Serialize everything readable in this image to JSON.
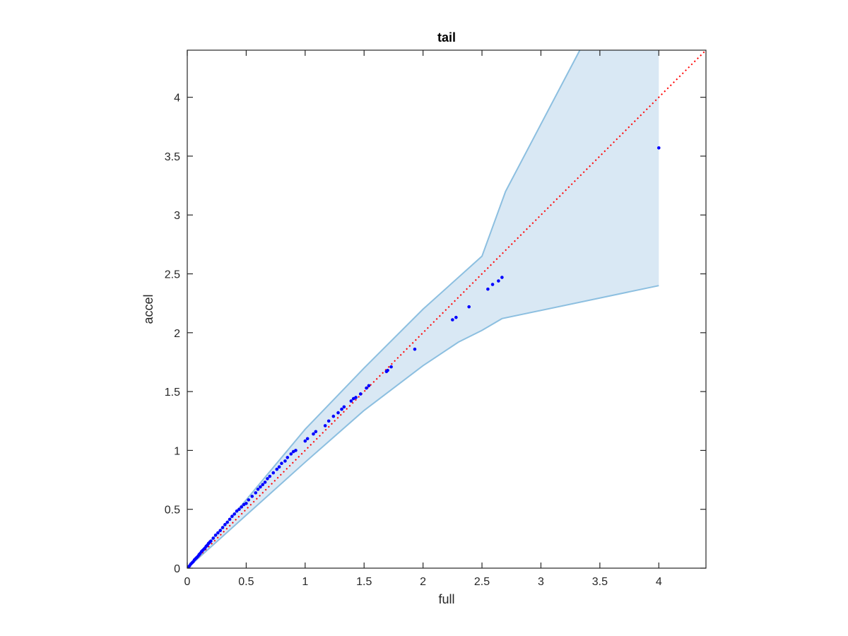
{
  "chart_data": {
    "type": "scatter",
    "title": "tail",
    "xlabel": "full",
    "ylabel": "accel",
    "xlim": [
      0,
      4.4
    ],
    "ylim": [
      0,
      4.4
    ],
    "xticks": [
      0,
      0.5,
      1,
      1.5,
      2,
      2.5,
      3,
      3.5,
      4
    ],
    "xtick_labels": [
      "0",
      "0.5",
      "1",
      "1.5",
      "2",
      "2.5",
      "3",
      "3.5",
      "4"
    ],
    "yticks": [
      0,
      0.5,
      1,
      1.5,
      2,
      2.5,
      3,
      3.5,
      4
    ],
    "ytick_labels": [
      "0",
      "0.5",
      "1",
      "1.5",
      "2",
      "2.5",
      "3",
      "3.5",
      "4"
    ],
    "grid": false,
    "colors": {
      "points": "#0000ff",
      "reference_line": "#ff0000",
      "band_fill": "#d9e8f4",
      "band_edge": "#8cbfe0",
      "axes": "#262626"
    },
    "reference_line": {
      "x": [
        0,
        4.4
      ],
      "y": [
        0,
        4.4
      ],
      "style": "dotted"
    },
    "band": {
      "upper": [
        [
          0,
          0
        ],
        [
          0.5,
          0.58
        ],
        [
          1,
          1.18
        ],
        [
          1.5,
          1.7
        ],
        [
          2,
          2.2
        ],
        [
          2.5,
          2.65
        ],
        [
          2.7,
          3.2
        ],
        [
          3.33,
          4.4
        ]
      ],
      "lower": [
        [
          0,
          0
        ],
        [
          0.5,
          0.45
        ],
        [
          1,
          0.9
        ],
        [
          1.5,
          1.34
        ],
        [
          2,
          1.72
        ],
        [
          2.3,
          1.92
        ],
        [
          2.5,
          2.02
        ],
        [
          2.67,
          2.12
        ],
        [
          4,
          2.4
        ]
      ],
      "right_edge_x": 4
    },
    "series": [
      {
        "x": [
          0,
          0.01,
          0.02,
          0.03,
          0.04,
          0.05,
          0.06,
          0.07,
          0.08,
          0.09,
          0.1,
          0.11,
          0.12,
          0.13,
          0.14,
          0.15,
          0.16,
          0.17,
          0.18,
          0.19,
          0.2,
          0.22,
          0.24,
          0.26,
          0.28,
          0.3,
          0.32,
          0.34,
          0.36,
          0.38,
          0.4,
          0.42,
          0.44,
          0.46,
          0.48,
          0.5,
          0.52,
          0.55,
          0.58,
          0.6,
          0.62,
          0.64,
          0.66,
          0.68,
          0.7,
          0.73,
          0.76,
          0.78,
          0.8,
          0.83,
          0.85,
          0.88,
          0.9,
          0.92,
          1.0,
          1.02,
          1.07,
          1.09,
          1.17,
          1.2,
          1.24,
          1.28,
          1.31,
          1.33,
          1.39,
          1.41,
          1.43,
          1.47,
          1.52,
          1.54,
          1.69,
          1.7,
          1.73,
          1.93,
          2.25,
          2.28,
          2.39,
          2.55,
          2.59,
          2.64,
          2.67,
          4.0
        ],
        "y": [
          0,
          0.01,
          0.02,
          0.035,
          0.045,
          0.055,
          0.07,
          0.08,
          0.09,
          0.1,
          0.115,
          0.125,
          0.14,
          0.15,
          0.16,
          0.17,
          0.185,
          0.195,
          0.21,
          0.22,
          0.23,
          0.255,
          0.28,
          0.3,
          0.32,
          0.345,
          0.37,
          0.39,
          0.415,
          0.44,
          0.46,
          0.485,
          0.5,
          0.52,
          0.54,
          0.55,
          0.58,
          0.61,
          0.64,
          0.67,
          0.69,
          0.71,
          0.73,
          0.76,
          0.78,
          0.81,
          0.84,
          0.86,
          0.89,
          0.91,
          0.94,
          0.97,
          0.99,
          1.0,
          1.08,
          1.1,
          1.14,
          1.16,
          1.21,
          1.25,
          1.29,
          1.32,
          1.35,
          1.37,
          1.42,
          1.44,
          1.45,
          1.48,
          1.53,
          1.55,
          1.67,
          1.68,
          1.71,
          1.86,
          2.11,
          2.13,
          2.22,
          2.37,
          2.41,
          2.44,
          2.47,
          3.57
        ]
      }
    ]
  }
}
